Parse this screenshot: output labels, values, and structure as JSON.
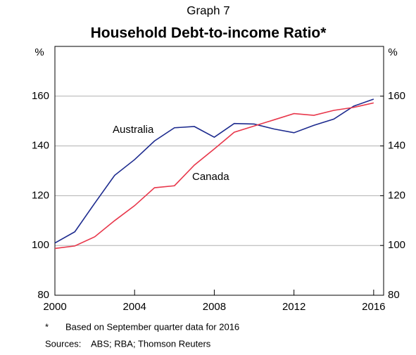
{
  "chart_data": {
    "type": "line",
    "graph_label": "Graph 7",
    "title": "Household Debt-to-income Ratio*",
    "y_unit": "%",
    "x": [
      2000,
      2001,
      2002,
      2003,
      2004,
      2005,
      2006,
      2007,
      2008,
      2009,
      2010,
      2011,
      2012,
      2013,
      2014,
      2015,
      2016
    ],
    "series": [
      {
        "name": "Australia",
        "color": "#1c2a8e",
        "values": [
          101,
          105.5,
          117,
          128.2,
          134.5,
          142,
          147.3,
          147.8,
          143.5,
          149,
          148.8,
          146.8,
          145.3,
          148.3,
          150.8,
          156,
          158.8
        ]
      },
      {
        "name": "Canada",
        "color": "#e8374b",
        "values": [
          98.8,
          99.8,
          103.5,
          110,
          116,
          123.2,
          124,
          132.3,
          138.8,
          145.5,
          148,
          150.5,
          153,
          152.3,
          154.3,
          155.5,
          157.3
        ]
      }
    ],
    "xlim": [
      2000,
      2016.5
    ],
    "xticks": [
      2000,
      2004,
      2008,
      2012,
      2016
    ],
    "ylim": [
      80,
      180
    ],
    "yticks": [
      80,
      100,
      120,
      140,
      160
    ],
    "y2lim": [
      80,
      180
    ],
    "y2ticks": [
      80,
      100,
      120,
      140,
      160
    ],
    "grid": true,
    "footnotes": [
      {
        "marker": "*",
        "text": "Based on September quarter data for 2016"
      },
      {
        "marker": "Sources:",
        "text": "ABS; RBA; Thomson Reuters"
      }
    ]
  }
}
